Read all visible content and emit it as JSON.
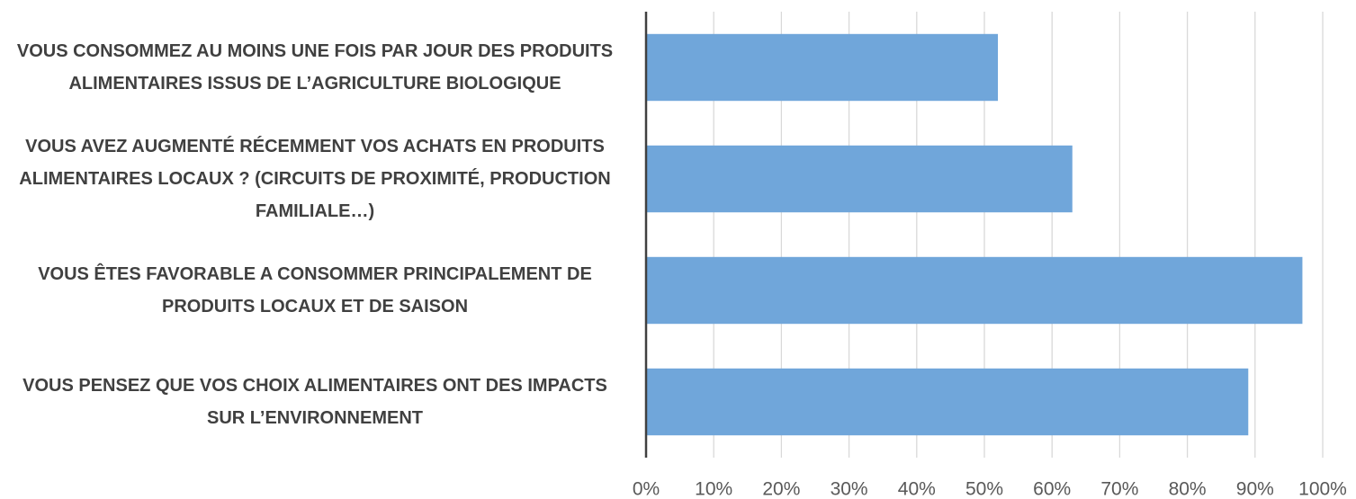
{
  "chart_data": {
    "type": "bar",
    "orientation": "horizontal",
    "categories": [
      "VOUS CONSOMMEZ AU MOINS UNE FOIS PAR JOUR DES PRODUITS ALIMENTAIRES ISSUS DE L’AGRICULTURE BIOLOGIQUE",
      "VOUS AVEZ AUGMENTÉ RÉCEMMENT VOS ACHATS EN PRODUITS ALIMENTAIRES LOCAUX ? (CIRCUITS DE PROXIMITÉ, PRODUCTION FAMILIALE…)",
      "VOUS ÊTES FAVORABLE A CONSOMMER PRINCIPALEMENT DE PRODUITS LOCAUX ET DE SAISON",
      "VOUS PENSEZ QUE VOS CHOIX ALIMENTAIRES ONT DES IMPACTS SUR L’ENVIRONNEMENT"
    ],
    "values": [
      52,
      63,
      97,
      89
    ],
    "color": "#70a6da",
    "xlim": [
      0,
      100
    ],
    "xticks": [
      {
        "value": 0,
        "label": "0%"
      },
      {
        "value": 10,
        "label": "10%"
      },
      {
        "value": 20,
        "label": "20%"
      },
      {
        "value": 30,
        "label": "30%"
      },
      {
        "value": 40,
        "label": "40%"
      },
      {
        "value": 50,
        "label": "50%"
      },
      {
        "value": 60,
        "label": "60%"
      },
      {
        "value": 70,
        "label": "70%"
      },
      {
        "value": 80,
        "label": "80%"
      },
      {
        "value": 90,
        "label": "90%"
      },
      {
        "value": 100,
        "label": "100%"
      }
    ],
    "grid": true
  }
}
